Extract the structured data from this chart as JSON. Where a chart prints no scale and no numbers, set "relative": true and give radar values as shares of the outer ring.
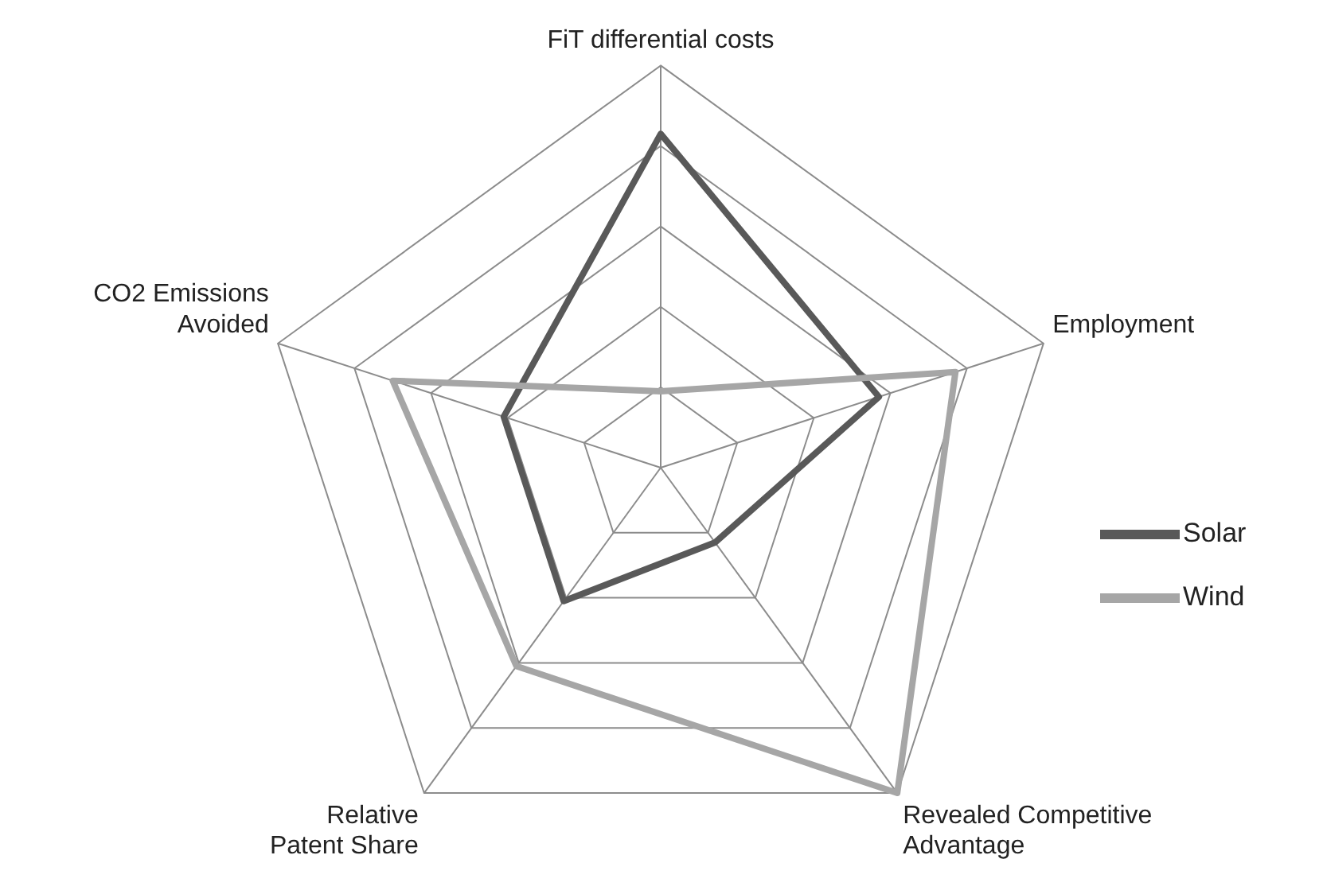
{
  "chart_data": {
    "type": "radar",
    "relative": true,
    "categories": [
      "FiT differential costs",
      "Employment",
      "Revealed Competitive Advantage",
      "Relative Patent Share",
      "CO2 Emissions Avoided"
    ],
    "series": [
      {
        "name": "Solar",
        "color": "#595959",
        "values": [
          0.83,
          0.57,
          0.23,
          0.41,
          0.41
        ]
      },
      {
        "name": "Wind",
        "color": "#a6a6a6",
        "values": [
          0.19,
          0.77,
          1.0,
          0.61,
          0.7
        ]
      }
    ],
    "legend": "right",
    "marker": "none",
    "grid": true
  }
}
